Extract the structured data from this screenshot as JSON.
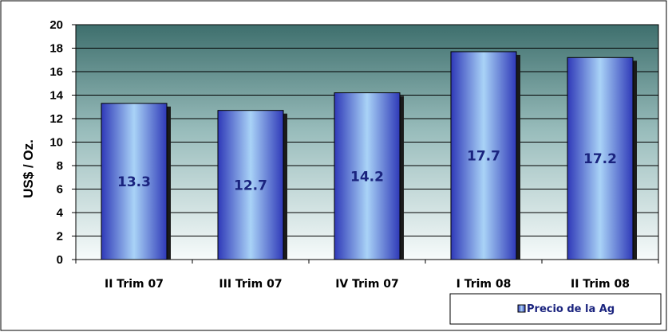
{
  "chart_data": {
    "type": "bar",
    "categories": [
      "II Trim 07",
      "III Trim 07",
      "IV Trim 07",
      "I Trim 08",
      "II Trim 08"
    ],
    "series": [
      {
        "name": "Precio de la Ag",
        "values": [
          13.3,
          12.7,
          14.2,
          17.7,
          17.2
        ]
      }
    ],
    "data_labels": [
      "13.3",
      "12.7",
      "14.2",
      "17.7",
      "17.2"
    ],
    "ylabel": "US$ / Oz.",
    "xlabel": "",
    "ylim": [
      0,
      20
    ],
    "yticks": [
      0,
      2,
      4,
      6,
      8,
      10,
      12,
      14,
      16,
      18,
      20
    ],
    "grid": true,
    "legend_position": "bottom-right",
    "colors": {
      "bar_light": "#a9d3f7",
      "bar_dark": "#2f39b8",
      "bar_shadow": "#1a1a1a",
      "plot_top": "#3e6f6d",
      "plot_bottom": "#f7fbfb",
      "label_text": "#1a237e"
    }
  }
}
